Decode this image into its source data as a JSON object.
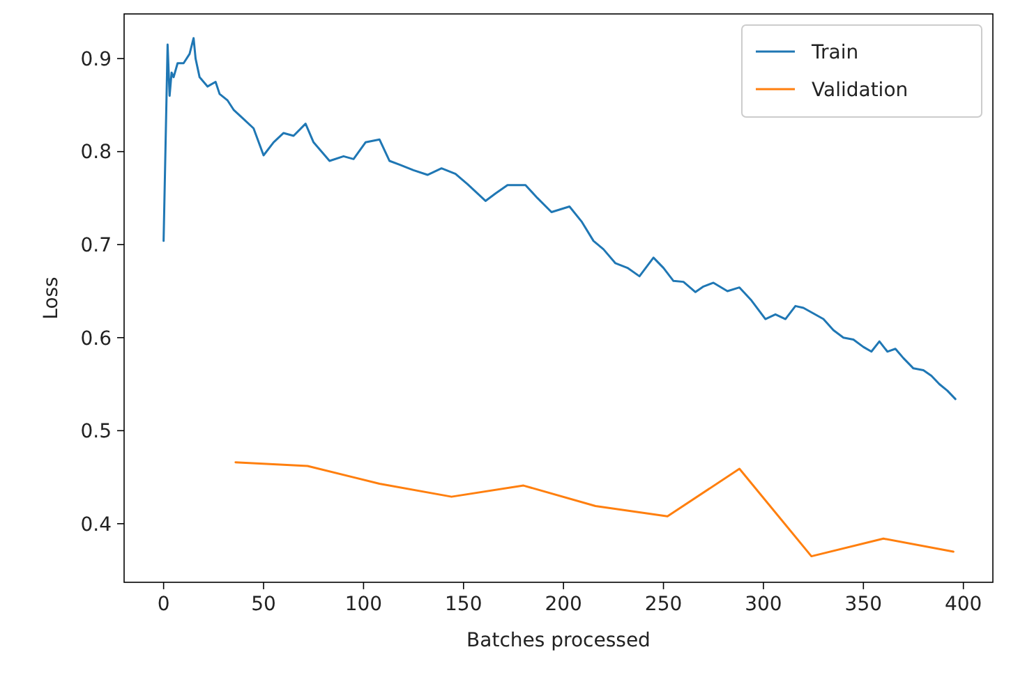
{
  "chart_data": {
    "type": "line",
    "xlabel": "Batches processed",
    "ylabel": "Loss",
    "xlim": [
      -19.75,
      414.75
    ],
    "ylim": [
      0.337,
      0.948
    ],
    "xticks": [
      0,
      50,
      100,
      150,
      200,
      250,
      300,
      350,
      400
    ],
    "yticks": [
      {
        "value": 0.4,
        "label": "0.4"
      },
      {
        "value": 0.5,
        "label": "0.5"
      },
      {
        "value": 0.6,
        "label": "0.6"
      },
      {
        "value": 0.7,
        "label": "0.7"
      },
      {
        "value": 0.8,
        "label": "0.8"
      },
      {
        "value": 0.9,
        "label": "0.9"
      }
    ],
    "grid": false,
    "legend": "top right",
    "marker": "none",
    "line_style": "solid",
    "series": [
      {
        "name": "Train",
        "color": "#1f77b4",
        "x": [
          0,
          2,
          3,
          4,
          5,
          7,
          10,
          13,
          15,
          16,
          18,
          22,
          26,
          28,
          32,
          35,
          40,
          45,
          50,
          55,
          60,
          65,
          71,
          75,
          83,
          90,
          95,
          101,
          108,
          113,
          118,
          125,
          132,
          139,
          146,
          152,
          161,
          166,
          172,
          181,
          187,
          194,
          203,
          209,
          215,
          220,
          226,
          232,
          238,
          245,
          250,
          255,
          260,
          266,
          270,
          275,
          282,
          288,
          294,
          301,
          306,
          311,
          316,
          320,
          325,
          330,
          335,
          340,
          345,
          350,
          354,
          358,
          362,
          366,
          370,
          375,
          380,
          384,
          388,
          392,
          396
        ],
        "values": [
          0.704,
          0.915,
          0.86,
          0.885,
          0.88,
          0.895,
          0.895,
          0.905,
          0.922,
          0.9,
          0.88,
          0.87,
          0.875,
          0.862,
          0.855,
          0.845,
          0.835,
          0.825,
          0.796,
          0.81,
          0.82,
          0.817,
          0.83,
          0.81,
          0.79,
          0.795,
          0.792,
          0.81,
          0.813,
          0.79,
          0.786,
          0.78,
          0.775,
          0.782,
          0.776,
          0.765,
          0.747,
          0.755,
          0.764,
          0.764,
          0.75,
          0.735,
          0.741,
          0.725,
          0.704,
          0.695,
          0.68,
          0.675,
          0.666,
          0.686,
          0.675,
          0.661,
          0.66,
          0.649,
          0.655,
          0.659,
          0.65,
          0.654,
          0.64,
          0.62,
          0.625,
          0.62,
          0.634,
          0.632,
          0.626,
          0.62,
          0.608,
          0.6,
          0.598,
          0.59,
          0.585,
          0.596,
          0.585,
          0.588,
          0.578,
          0.567,
          0.565,
          0.559,
          0.55,
          0.543,
          0.534
        ]
      },
      {
        "name": "Validation",
        "color": "#ff7f0e",
        "x": [
          36,
          72,
          108,
          144,
          180,
          216,
          252,
          288,
          324,
          360,
          395
        ],
        "values": [
          0.466,
          0.462,
          0.443,
          0.429,
          0.441,
          0.419,
          0.408,
          0.459,
          0.365,
          0.384,
          0.37
        ]
      }
    ]
  }
}
